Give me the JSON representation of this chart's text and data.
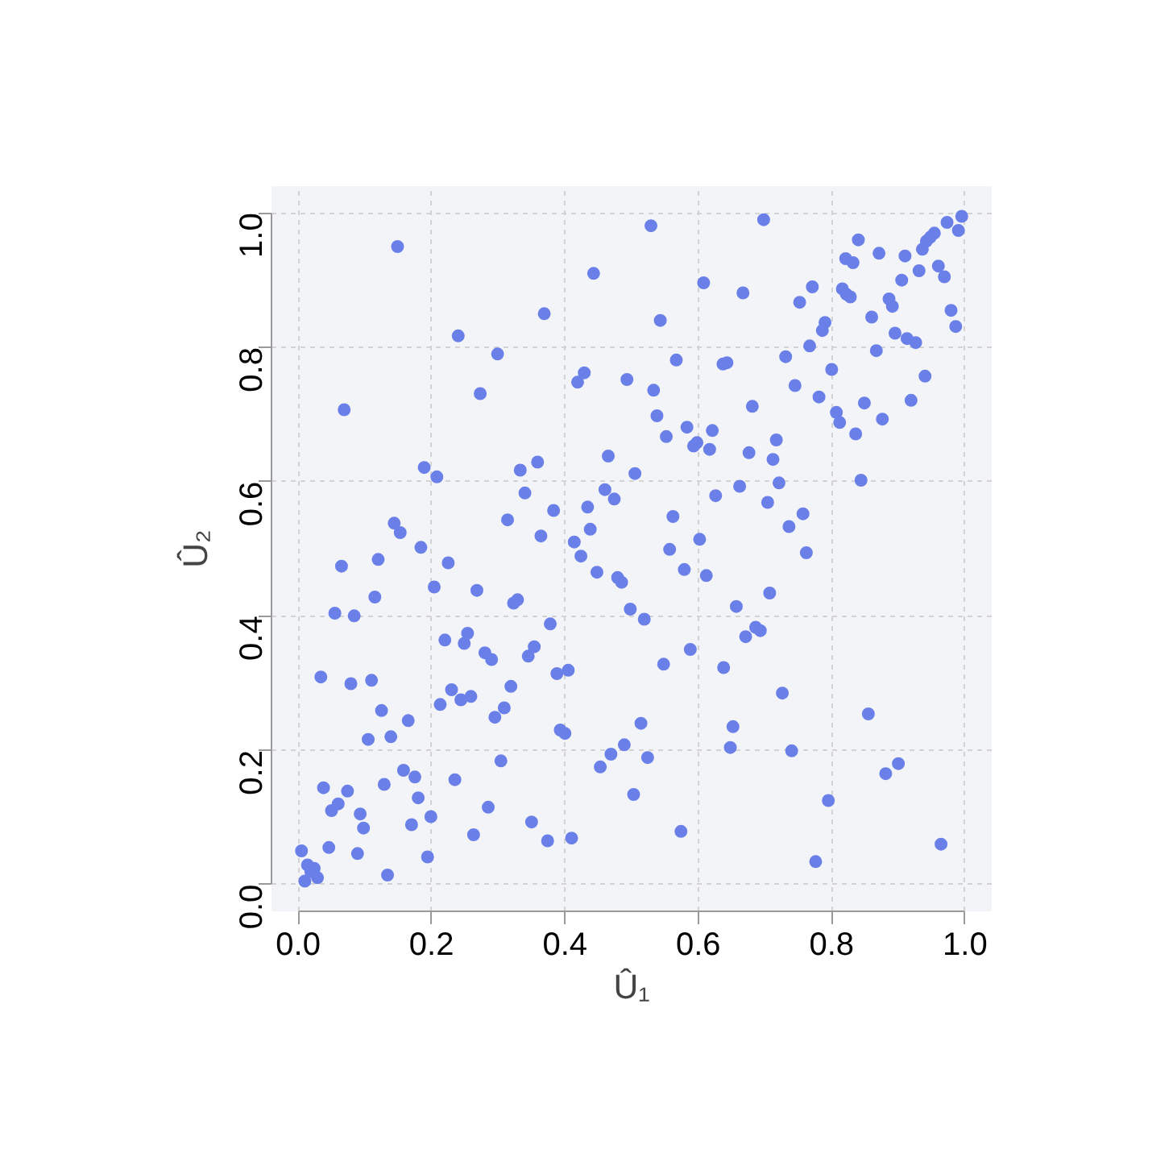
{
  "chart_data": {
    "type": "scatter",
    "xlabel": "Û₁",
    "ylabel": "Û₂",
    "xlim": [
      -0.04,
      1.04
    ],
    "ylim": [
      -0.04,
      1.04
    ],
    "xticks": [
      {
        "value": 0,
        "label": "0.0"
      },
      0.2,
      0.4,
      0.6,
      0.8,
      {
        "value": 1,
        "label": "1.0"
      }
    ],
    "yticks": [
      {
        "value": 0,
        "label": "0.0"
      },
      0.2,
      0.4,
      0.6,
      0.8,
      {
        "value": 1,
        "label": "1.0"
      }
    ],
    "grid": true,
    "marker": "circle",
    "series": [
      {
        "color": "#6a80e8",
        "x": [
          0.149,
          0.443,
          0.369,
          0.24,
          0.299,
          0.429,
          0.419,
          0.493,
          0.273,
          0.069,
          0.465,
          0.189,
          0.208,
          0.333,
          0.359,
          0.505,
          0.46,
          0.474,
          0.34,
          0.434,
          0.144,
          0.153,
          0.383,
          0.314,
          0.438,
          0.364,
          0.184,
          0.414,
          0.529,
          0.698,
          0.995,
          0.973,
          0.99,
          0.84,
          0.954,
          0.948,
          0.942,
          0.936,
          0.871,
          0.821,
          0.832,
          0.91,
          0.96,
          0.931,
          0.969,
          0.905,
          0.608,
          0.771,
          0.667,
          0.816,
          0.822,
          0.828,
          0.752,
          0.886,
          0.891,
          0.979,
          0.986,
          0.543,
          0.86,
          0.79,
          0.786,
          0.895,
          0.913,
          0.926,
          0.767,
          0.867,
          0.731,
          0.567,
          0.637,
          0.643,
          0.8,
          0.533,
          0.745,
          0.94,
          0.781,
          0.538,
          0.681,
          0.807,
          0.812,
          0.849,
          0.919,
          0.583,
          0.621,
          0.552,
          0.593,
          0.598,
          0.617,
          0.717,
          0.836,
          0.876,
          0.676,
          0.712,
          0.721,
          0.844,
          0.662,
          0.626,
          0.704,
          0.757,
          0.562,
          0.736,
          0.602,
          0.557,
          0.762,
          0.424,
          0.448,
          0.479,
          0.485,
          0.498,
          0.065,
          0.12,
          0.225,
          0.204,
          0.268,
          0.115,
          0.323,
          0.329,
          0.055,
          0.084,
          0.378,
          0.22,
          0.254,
          0.249,
          0.28,
          0.29,
          0.354,
          0.345,
          0.388,
          0.405,
          0.034,
          0.079,
          0.11,
          0.23,
          0.244,
          0.259,
          0.213,
          0.319,
          0.309,
          0.295,
          0.125,
          0.165,
          0.105,
          0.139,
          0.393,
          0.4,
          0.489,
          0.469,
          0.453,
          0.503,
          0.304,
          0.158,
          0.175,
          0.235,
          0.129,
          0.038,
          0.074,
          0.18,
          0.06,
          0.05,
          0.093,
          0.285,
          0.199,
          0.098,
          0.17,
          0.35,
          0.374,
          0.41,
          0.263,
          0.005,
          0.046,
          0.089,
          0.194,
          0.014,
          0.024,
          0.019,
          0.029,
          0.01,
          0.134,
          0.579,
          0.612,
          0.707,
          0.657,
          0.519,
          0.686,
          0.693,
          0.671,
          0.588,
          0.548,
          0.638,
          0.726,
          0.855,
          0.514,
          0.652,
          0.648,
          0.74,
          0.524,
          0.881,
          0.9,
          0.795,
          0.574,
          0.964,
          0.776
        ],
        "values": [
          0.95,
          0.91,
          0.85,
          0.817,
          0.79,
          0.762,
          0.748,
          0.752,
          0.731,
          0.707,
          0.638,
          0.621,
          0.607,
          0.617,
          0.629,
          0.612,
          0.588,
          0.574,
          0.583,
          0.562,
          0.538,
          0.524,
          0.557,
          0.543,
          0.529,
          0.519,
          0.502,
          0.51,
          0.981,
          0.99,
          0.995,
          0.986,
          0.974,
          0.96,
          0.97,
          0.964,
          0.958,
          0.946,
          0.94,
          0.932,
          0.926,
          0.936,
          0.921,
          0.914,
          0.905,
          0.9,
          0.896,
          0.89,
          0.881,
          0.887,
          0.879,
          0.875,
          0.867,
          0.872,
          0.861,
          0.855,
          0.831,
          0.84,
          0.845,
          0.837,
          0.825,
          0.821,
          0.813,
          0.807,
          0.802,
          0.795,
          0.786,
          0.781,
          0.775,
          0.777,
          0.767,
          0.736,
          0.743,
          0.757,
          0.726,
          0.698,
          0.712,
          0.703,
          0.688,
          0.717,
          0.721,
          0.681,
          0.676,
          0.667,
          0.653,
          0.658,
          0.648,
          0.662,
          0.671,
          0.693,
          0.643,
          0.633,
          0.598,
          0.602,
          0.593,
          0.579,
          0.569,
          0.552,
          0.548,
          0.533,
          0.514,
          0.499,
          0.494,
          0.489,
          0.465,
          0.457,
          0.45,
          0.41,
          0.474,
          0.484,
          0.479,
          0.443,
          0.438,
          0.428,
          0.419,
          0.424,
          0.404,
          0.4,
          0.388,
          0.364,
          0.374,
          0.359,
          0.345,
          0.335,
          0.354,
          0.34,
          0.314,
          0.319,
          0.309,
          0.299,
          0.304,
          0.29,
          0.275,
          0.28,
          0.268,
          0.295,
          0.263,
          0.249,
          0.259,
          0.244,
          0.216,
          0.22,
          0.23,
          0.225,
          0.208,
          0.194,
          0.175,
          0.134,
          0.184,
          0.17,
          0.16,
          0.156,
          0.149,
          0.144,
          0.139,
          0.129,
          0.12,
          0.11,
          0.105,
          0.115,
          0.101,
          0.084,
          0.089,
          0.093,
          0.065,
          0.069,
          0.074,
          0.05,
          0.055,
          0.046,
          0.041,
          0.029,
          0.024,
          0.019,
          0.01,
          0.005,
          0.014,
          0.469,
          0.46,
          0.434,
          0.414,
          0.395,
          0.383,
          0.378,
          0.369,
          0.35,
          0.328,
          0.323,
          0.285,
          0.254,
          0.24,
          0.235,
          0.204,
          0.199,
          0.189,
          0.165,
          0.18,
          0.125,
          0.079,
          0.06,
          0.034
        ]
      }
    ]
  }
}
